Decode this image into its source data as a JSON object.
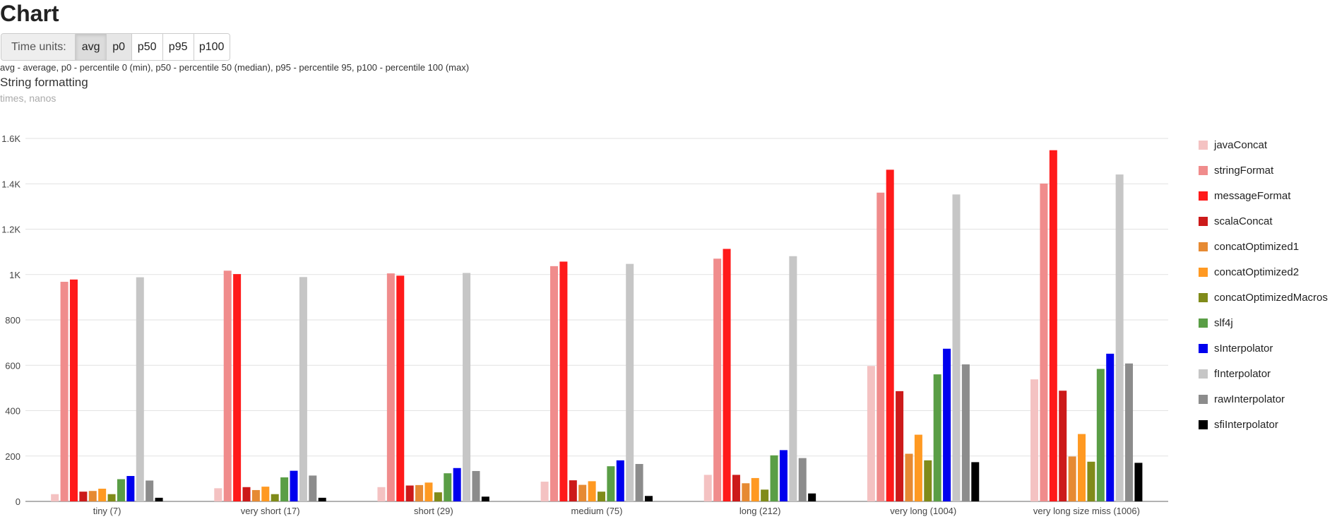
{
  "page": {
    "title": "Chart"
  },
  "time_units": {
    "label": "Time units:",
    "buttons": [
      {
        "label": "avg",
        "state": "active"
      },
      {
        "label": "p0",
        "state": "pressed"
      },
      {
        "label": "p50",
        "state": "normal"
      },
      {
        "label": "p95",
        "state": "normal"
      },
      {
        "label": "p100",
        "state": "normal"
      }
    ],
    "description": "avg - average, p0 - percentile 0 (min), p50 - percentile 50 (median), p95 - percentile 95, p100 - percentile 100 (max)"
  },
  "chart_data": {
    "type": "bar",
    "title": "String formatting",
    "subtitle": "times, nanos",
    "xlabel": "",
    "ylabel": "",
    "ylim": [
      0,
      1600
    ],
    "yticks": [
      0,
      200,
      400,
      600,
      800,
      1000,
      1200,
      1400,
      1600
    ],
    "ytick_labels": [
      "0",
      "200",
      "400",
      "600",
      "800",
      "1K",
      "1.2K",
      "1.4K",
      "1.6K"
    ],
    "grid": true,
    "legend_position": "right",
    "categories": [
      "tiny (7)",
      "very short (17)",
      "short (29)",
      "medium (75)",
      "long (212)",
      "very long (1004)",
      "very long size miss (1006)"
    ],
    "series": [
      {
        "name": "javaConcat",
        "color": "#f4c2c2",
        "values": [
          32,
          58,
          63,
          87,
          117,
          597,
          538
        ]
      },
      {
        "name": "stringFormat",
        "color": "#f08c8c",
        "values": [
          968,
          1017,
          1005,
          1037,
          1070,
          1361,
          1401
        ]
      },
      {
        "name": "messageFormat",
        "color": "#ff1a1a",
        "values": [
          978,
          1002,
          995,
          1057,
          1113,
          1462,
          1548
        ]
      },
      {
        "name": "scalaConcat",
        "color": "#cc1a1a",
        "values": [
          43,
          63,
          70,
          93,
          117,
          486,
          488
        ]
      },
      {
        "name": "concatOptimized1",
        "color": "#e68a33",
        "values": [
          46,
          50,
          72,
          73,
          80,
          210,
          198
        ]
      },
      {
        "name": "concatOptimized2",
        "color": "#ff9922",
        "values": [
          56,
          65,
          83,
          89,
          103,
          294,
          297
        ]
      },
      {
        "name": "concatOptimizedMacros",
        "color": "#808b1a",
        "values": [
          32,
          32,
          40,
          43,
          52,
          181,
          175
        ]
      },
      {
        "name": "slf4j",
        "color": "#5a9e46",
        "values": [
          98,
          106,
          124,
          155,
          203,
          560,
          584
        ]
      },
      {
        "name": "sInterpolator",
        "color": "#0000ee",
        "values": [
          112,
          135,
          147,
          181,
          226,
          673,
          651
        ]
      },
      {
        "name": "fInterpolator",
        "color": "#c6c6c6",
        "values": [
          988,
          989,
          1007,
          1047,
          1081,
          1353,
          1441
        ]
      },
      {
        "name": "rawInterpolator",
        "color": "#8c8c8c",
        "values": [
          92,
          114,
          134,
          165,
          191,
          604,
          608
        ]
      },
      {
        "name": "sfiInterpolator",
        "color": "#000000",
        "values": [
          16,
          16,
          21,
          24,
          35,
          173,
          170
        ]
      }
    ]
  }
}
